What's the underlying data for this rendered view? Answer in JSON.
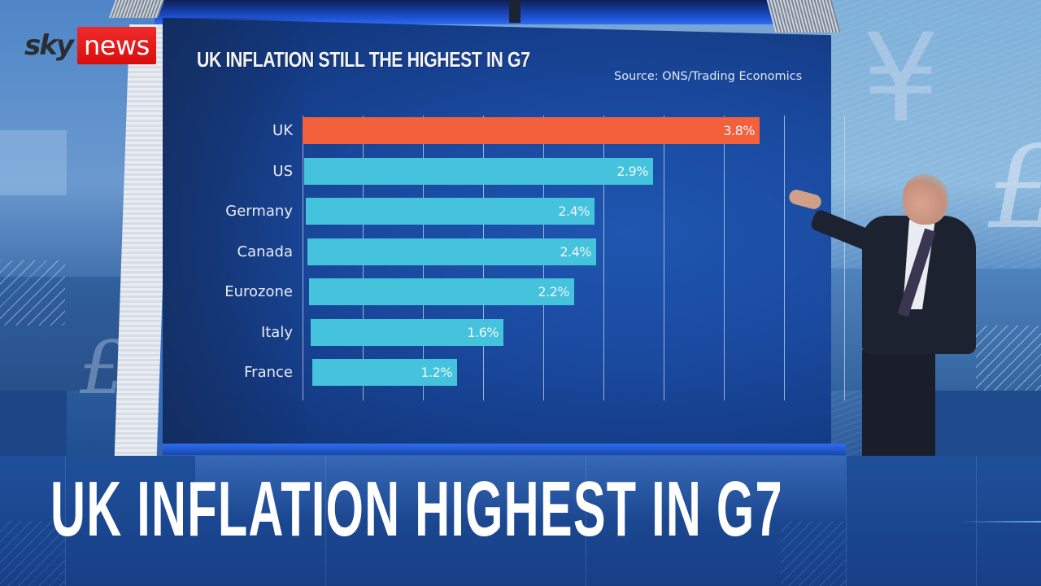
{
  "logo": {
    "brand_left": "sky",
    "brand_right": "news",
    "brand_color": "#e01414"
  },
  "screen": {
    "title": "UK INFLATION STILL THE HIGHEST IN G7",
    "source": "Source: ONS/Trading Economics"
  },
  "lower_third": {
    "headline": "UK INFLATION HIGHEST IN G7"
  },
  "colors": {
    "highlight_bar": "#f2603c",
    "default_bar": "#45c3dd",
    "wall_background": "#1a4aa0",
    "headline_background": "#1a478f"
  },
  "chart_data": {
    "type": "bar",
    "orientation": "horizontal",
    "title": "UK INFLATION STILL THE HIGHEST IN G7",
    "source": "Source: ONS/Trading Economics",
    "categories": [
      "UK",
      "US",
      "Germany",
      "Canada",
      "Eurozone",
      "Italy",
      "France"
    ],
    "values": [
      3.8,
      2.9,
      2.4,
      2.4,
      2.2,
      1.6,
      1.2
    ],
    "value_labels": [
      "3.8%",
      "2.9%",
      "2.4%",
      "2.4%",
      "2.2%",
      "1.6%",
      "1.2%"
    ],
    "highlight": "UK",
    "xlabel": "",
    "ylabel": "",
    "xlim": [
      0,
      4.0
    ],
    "grid_interval": 0.5,
    "grid": true,
    "legend": false,
    "unit": "%"
  }
}
